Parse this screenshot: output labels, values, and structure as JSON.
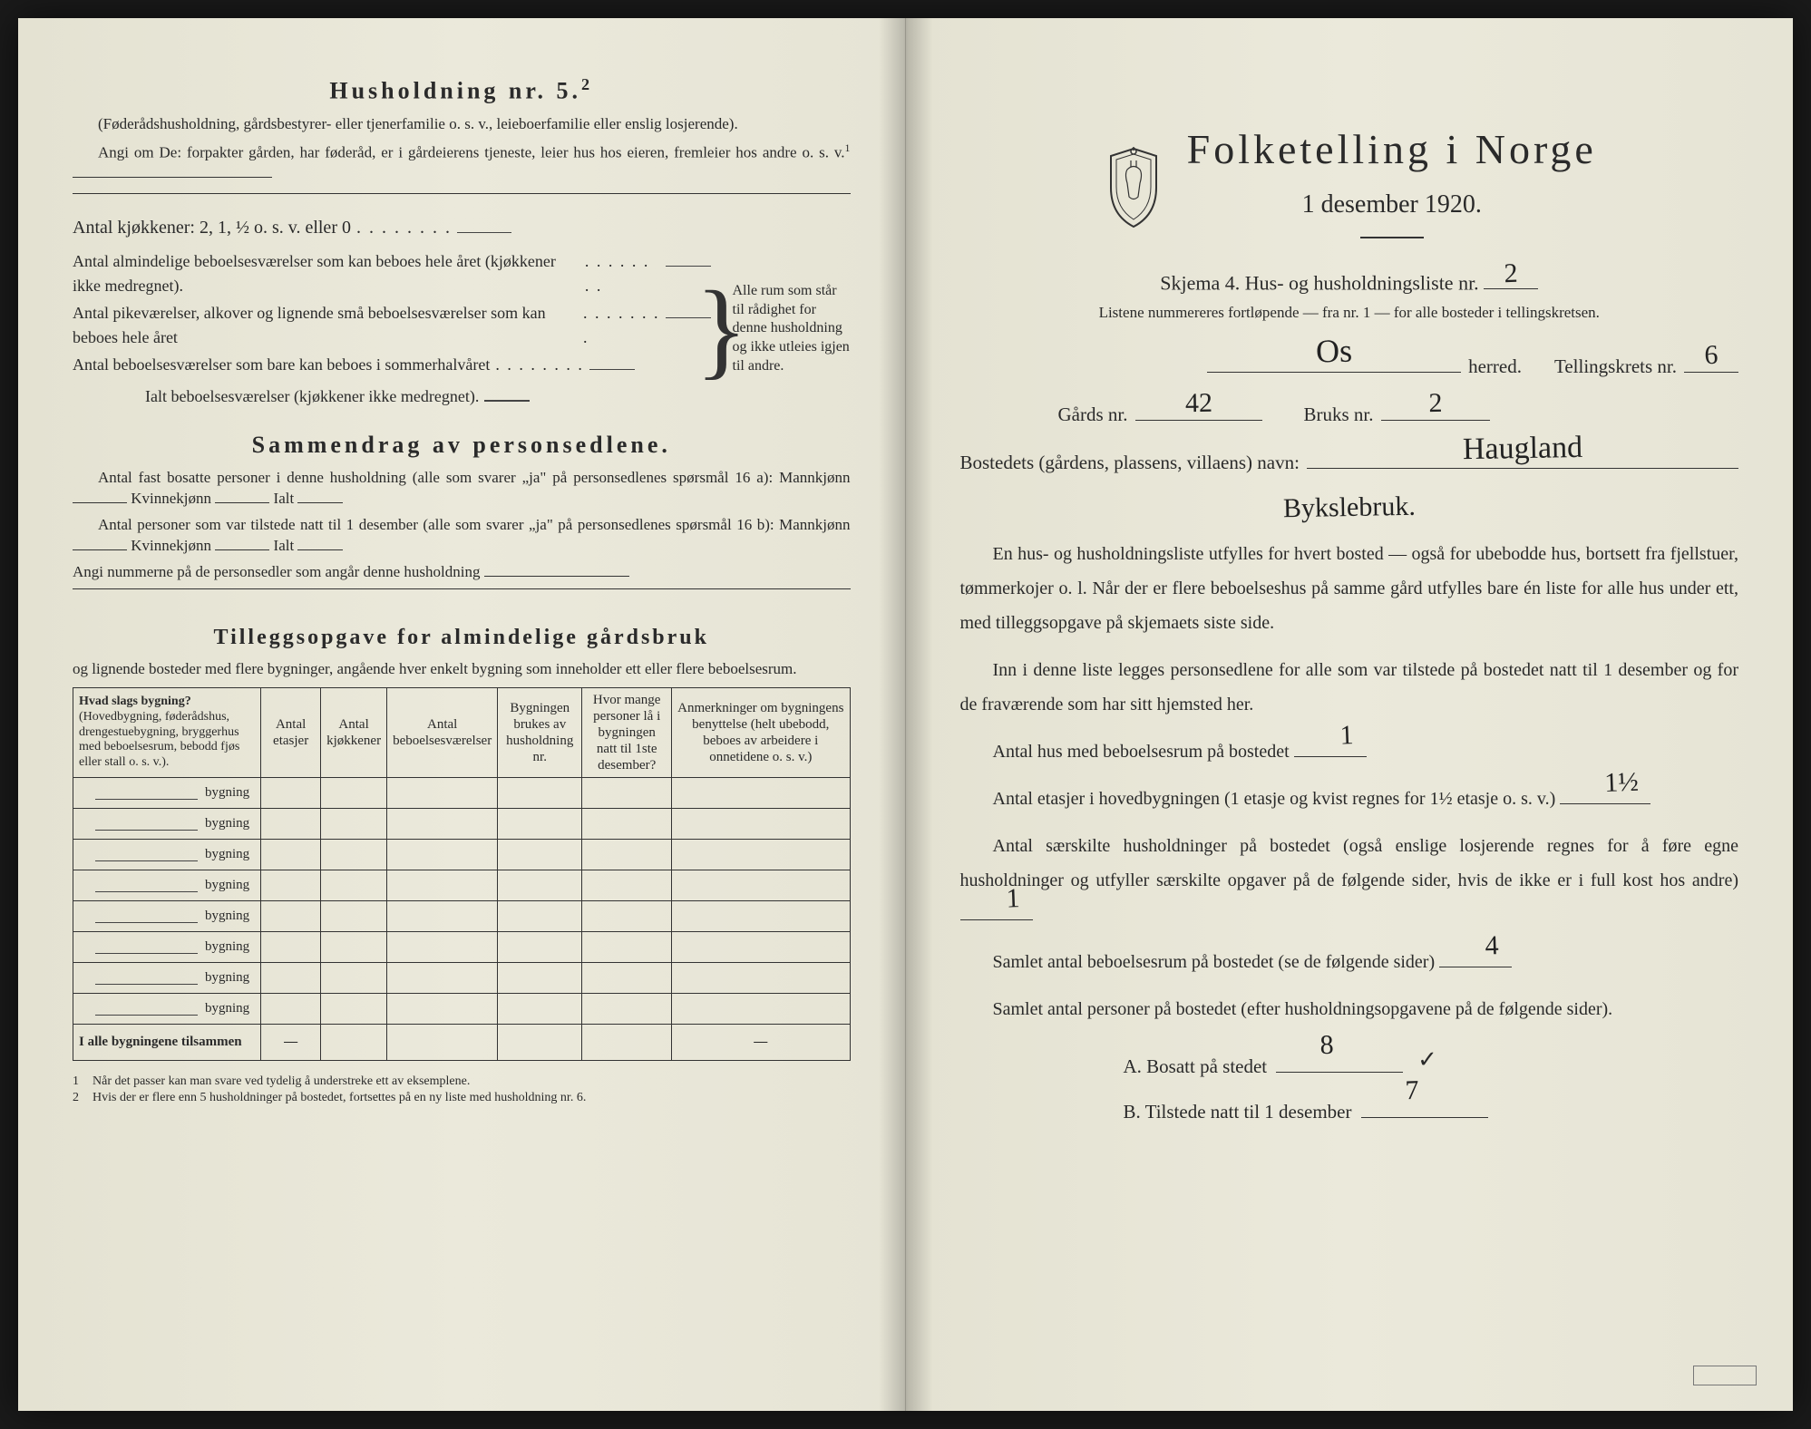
{
  "left": {
    "heading": "Husholdning nr. 5.",
    "heading_sup": "2",
    "intro_paren": "(Føderådshusholdning, gårdsbestyrer- eller tjenerfamilie o. s. v., leieboerfamilie eller enslig losjerende).",
    "intro_line": "Angi om De: forpakter gården, har føderåd, er i gårdeierens tjeneste, leier hus hos eieren, fremleier hos andre o. s. v.",
    "intro_sup": "1",
    "kjokken_line": "Antal kjøkkener: 2, 1, ½ o. s. v. eller 0",
    "brace_lines": {
      "a": "Antal almindelige beboelsesværelser som kan beboes hele året (kjøkkener ikke medregnet).",
      "b": "Antal pikeværelser, alkover og lignende små beboelsesværelser som kan beboes hele året",
      "c": "Antal beboelsesværelser som bare kan beboes i sommerhalvåret",
      "sum": "Ialt beboelsesværelser  (kjøkkener ikke medregnet).",
      "side": "Alle rum som står til rådighet for denne husholdning og ikke utleies igjen til andre."
    },
    "sammendrag_title": "Sammendrag av personsedlene.",
    "samm_line1a": "Antal fast bosatte personer i denne husholdning (alle som svarer „ja\" på personsedlenes spørsmål 16 a): Mannkjønn",
    "samm_kvinne": "Kvinnekjønn",
    "samm_ialt": "Ialt",
    "samm_line2a": "Antal personer som var tilstede natt til 1 desember (alle som svarer „ja\" på personsedlenes spørsmål 16 b): Mannkjønn",
    "samm_line3": "Angi nummerne på de personsedler som angår denne husholdning",
    "tillegg_title": "Tilleggsopgave for almindelige gårdsbruk",
    "tillegg_sub": "og lignende bosteder med flere bygninger, angående hver enkelt bygning som inneholder ett eller flere beboelsesrum.",
    "table": {
      "headers": {
        "h1_strong": "Hvad slags bygning?",
        "h1_rest": "(Hovedbygning, føderådshus, drengestuebygning, bryggerhus med beboelsesrum, bebodd fjøs eller stall o. s. v.).",
        "h2": "Antal etasjer",
        "h3": "Antal kjøkkener",
        "h4": "Antal beboelsesværelser",
        "h5": "Bygningen brukes av husholdning nr.",
        "h6": "Hvor mange personer lå i bygningen natt til 1ste desember?",
        "h7": "Anmerkninger om bygningens benyttelse (helt ubebodd, beboes av arbeidere i onnetidene o. s. v.)"
      },
      "row_label": "bygning",
      "row_count": 8,
      "sum_label": "I alle bygningene tilsammen"
    },
    "footnote1": "Når det passer kan man svare ved tydelig å understreke ett av eksemplene.",
    "footnote2": "Hvis der er flere enn 5 husholdninger på bostedet, fortsettes på en ny liste med husholdning nr. 6."
  },
  "right": {
    "title": "Folketelling i Norge",
    "date": "1 desember 1920.",
    "skjema_prefix": "Skjema 4.   Hus- og husholdningsliste nr.",
    "liste_nr": "2",
    "skjema_sub": "Listene nummereres fortløpende — fra nr. 1 — for alle bosteder i tellingskretsen.",
    "herred_value": "Os",
    "herred_label": "herred.",
    "tellingskrets_label": "Tellingskrets nr.",
    "tellingskrets_value": "6",
    "gards_label": "Gårds nr.",
    "gards_value": "42",
    "bruks_label": "Bruks nr.",
    "bruks_value": "2",
    "bosted_label": "Bostedets (gårdens, plassens, villaens) navn:",
    "bosted_value": "Haugland",
    "bosted_value2": "Bykslebruk.",
    "para1": "En hus- og husholdningsliste utfylles for hvert bosted — også for ubebodde hus, bortsett fra fjellstuer, tømmerkojer o. l.  Når der er flere beboelseshus på samme gård utfylles bare én liste for alle hus under ett, med tilleggsopgave på skjemaets siste side.",
    "para2": "Inn i denne liste legges personsedlene for alle som var tilstede på bostedet natt til 1 desember og for de fraværende som har sitt hjemsted her.",
    "q1_label": "Antal hus med beboelsesrum på bostedet",
    "q1_value": "1",
    "q2_label_a": "Antal etasjer i hovedbygningen (1 etasje og kvist regnes for 1½ etasje o. s. v.)",
    "q2_value": "1½",
    "q3_label": "Antal særskilte husholdninger på bostedet (også enslige losjerende regnes for å føre egne husholdninger og utfyller særskilte opgaver på de følgende sider, hvis de ikke er i full kost hos andre)",
    "q3_value": "1",
    "q4_label": "Samlet antal beboelsesrum på bostedet (se de følgende sider)",
    "q4_value": "4",
    "q5_label": "Samlet antal personer på bostedet (efter husholdningsopgavene på de følgende sider).",
    "qA_label": "A.  Bosatt på stedet",
    "qA_value": "8",
    "qA_check": "✓",
    "qB_label": "B.  Tilstede natt til 1 desember",
    "qB_value": "7"
  }
}
